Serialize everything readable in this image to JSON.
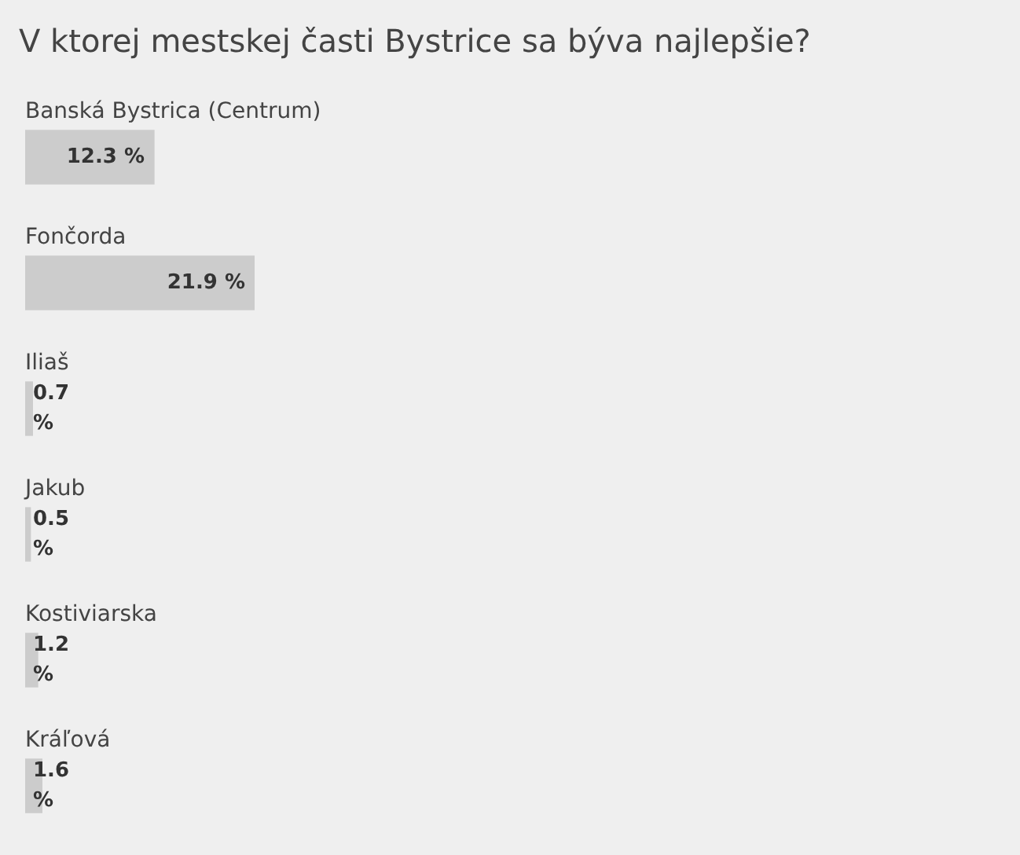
{
  "chart_data": {
    "type": "bar",
    "orientation": "horizontal",
    "title": "V ktorej mestskej časti Bystrice sa býva najlepšie?",
    "categories": [
      "Banská Bystrica (Centrum)",
      "Fončorda",
      "Iliaš",
      "Jakub",
      "Kostiviarska",
      "Kráľová"
    ],
    "values": [
      12.3,
      21.9,
      0.7,
      0.5,
      1.2,
      1.6
    ],
    "value_labels": [
      "12.3 %",
      "21.9 %",
      "0.7 %",
      "0.5 %",
      "1.2 %",
      "1.6 %"
    ],
    "color": "#cccccc",
    "tick_labels": "y"
  }
}
